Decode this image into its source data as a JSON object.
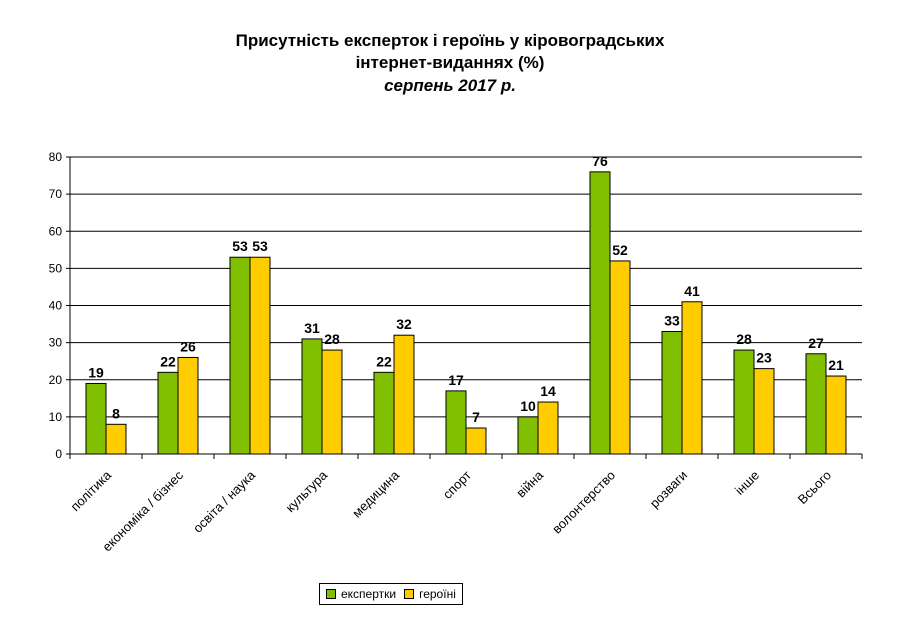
{
  "chart_data": {
    "type": "bar",
    "title_lines": [
      "Присутність експерток і героїнь у кіровоградських",
      "інтернет-виданнях (%)"
    ],
    "subtitle": "серпень 2017 р.",
    "categories": [
      "політика",
      "економіка / бізнес",
      "освіта / наука",
      "культура",
      "медицина",
      "спорт",
      "війна",
      "волонтерство",
      "розваги",
      "інше",
      "Всього"
    ],
    "series": [
      {
        "name": "експертки",
        "color": "#80c000",
        "values": [
          19,
          22,
          53,
          31,
          22,
          17,
          10,
          76,
          33,
          28,
          27
        ]
      },
      {
        "name": "героїні",
        "color": "#ffcc00",
        "values": [
          8,
          26,
          53,
          28,
          32,
          7,
          14,
          52,
          41,
          23,
          21
        ]
      }
    ],
    "ylim": [
      0,
      80
    ],
    "yticks": [
      0,
      10,
      20,
      30,
      40,
      50,
      60,
      70,
      80
    ],
    "grid": true,
    "legend_position": "bottom"
  }
}
